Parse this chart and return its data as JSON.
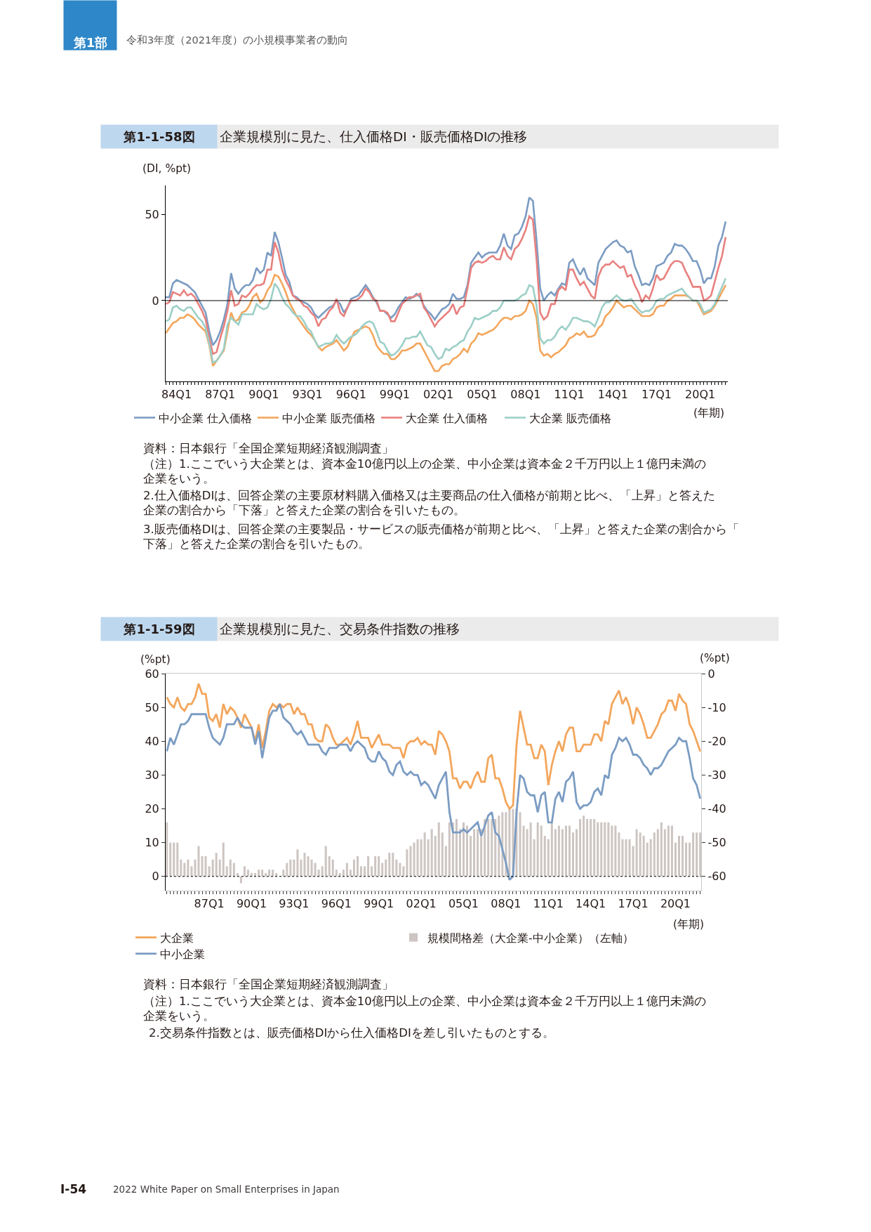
{
  "chart_data": [
    {
      "type": "line",
      "title": "企業規模別に見た、仕入価格DI・販売価格DIの推移",
      "xlabel": "(年期)",
      "ylabel": "(DI, %pt)",
      "annotations": [
        "第1部",
        "令和3年度（2021年度）の小規模事業者の動向",
        "第1-1-58図",
        "資料：日本銀行「全国企業短期経済観測調査」",
        "（注）1.ここでいう大企業とは、資本金10億円以上の企業、中小企業は資本金２千万円以上１億円未満の企業をいう。",
        "2.仕入価格DIは、回答企業の主要原材料購入価格又は主要商品の仕入価格が前期と比べ、「上昇」と答えた企業の割合から「下落」と答えた企業の割合を引いたもの。",
        "3.販売価格DIは、回答企業の主要製品・サービスの販売価格が前期と比べ、「上昇」と答えた企業の割合から「下落」と答えた企業の割合を引いたもの。"
      ],
      "categories": [
        null,
        null,
        null,
        "84Q1",
        null,
        null,
        null,
        null,
        null,
        null,
        null,
        null,
        null,
        null,
        null,
        "87Q1",
        null,
        null,
        null,
        null,
        null,
        null,
        null,
        null,
        null,
        null,
        null,
        "90Q1",
        null,
        null,
        null,
        null,
        null,
        null,
        null,
        null,
        null,
        null,
        null,
        "93Q1",
        null,
        null,
        null,
        null,
        null,
        null,
        null,
        null,
        null,
        null,
        null,
        "96Q1",
        null,
        null,
        null,
        null,
        null,
        null,
        null,
        null,
        null,
        null,
        null,
        "99Q1",
        null,
        null,
        null,
        null,
        null,
        null,
        null,
        null,
        null,
        null,
        null,
        "02Q1",
        null,
        null,
        null,
        null,
        null,
        null,
        null,
        null,
        null,
        null,
        null,
        "05Q1",
        null,
        null,
        null,
        null,
        null,
        null,
        null,
        null,
        null,
        null,
        null,
        "08Q1",
        null,
        null,
        null,
        null,
        null,
        null,
        null,
        null,
        null,
        null,
        null,
        "11Q1",
        null,
        null,
        null,
        null,
        null,
        null,
        null,
        null,
        null,
        null,
        null,
        "14Q1",
        null,
        null,
        null,
        null,
        null,
        null,
        null,
        null,
        null,
        null,
        null,
        "17Q1",
        null,
        null,
        null,
        null,
        null,
        null,
        null,
        null,
        null,
        null,
        null,
        "20Q1",
        null,
        null,
        null,
        null,
        null,
        null,
        null
      ],
      "series": [
        {
          "name": "中小企業 仕入価格",
          "color": "#7b9cc3",
          "values": [
            2,
            2,
            10,
            12,
            11,
            10,
            9,
            7,
            5,
            1,
            -3,
            -7,
            -18,
            -26,
            -23,
            -18,
            -11,
            -2,
            16,
            7,
            4,
            7,
            9,
            9,
            12,
            19,
            16,
            18,
            28,
            26,
            40,
            34,
            25,
            15,
            11,
            3,
            2,
            0,
            -1,
            -2,
            -4,
            -8,
            -10,
            -8,
            -6,
            -4,
            -3,
            0,
            -2,
            -7,
            -4,
            1,
            2,
            3,
            6,
            9,
            6,
            2,
            -1,
            -6,
            -6,
            -8,
            -10,
            -8,
            -4,
            -1,
            2,
            1,
            2,
            4,
            2,
            -3,
            -6,
            -8,
            -11,
            -8,
            -5,
            -4,
            -2,
            4,
            1,
            1,
            2,
            9,
            22,
            25,
            28,
            25,
            27,
            28,
            28,
            28,
            32,
            39,
            32,
            30,
            38,
            39,
            43,
            49,
            60,
            58,
            35,
            7,
            0,
            3,
            5,
            3,
            7,
            10,
            9,
            22,
            24,
            19,
            15,
            19,
            13,
            11,
            9,
            22,
            26,
            30,
            32,
            34,
            35,
            32,
            31,
            28,
            29,
            20,
            15,
            9,
            10,
            9,
            13,
            20,
            21,
            22,
            26,
            28,
            33,
            32,
            32,
            30,
            27,
            23,
            23,
            18,
            10,
            13,
            13,
            20,
            32,
            37,
            46
          ]
        },
        {
          "name": "中小企業 販売価格",
          "color": "#f3a65c",
          "values": [
            -19,
            -16,
            -13,
            -12,
            -10,
            -10,
            -8,
            -9,
            -11,
            -14,
            -16,
            -18,
            -26,
            -38,
            -35,
            -32,
            -29,
            -18,
            -7,
            -12,
            -11,
            -7,
            -6,
            -3,
            2,
            4,
            -1,
            1,
            6,
            9,
            15,
            14,
            10,
            5,
            -1,
            -5,
            -9,
            -12,
            -15,
            -18,
            -20,
            -23,
            -27,
            -29,
            -27,
            -26,
            -25,
            -23,
            -26,
            -29,
            -27,
            -22,
            -18,
            -17,
            -16,
            -15,
            -16,
            -20,
            -26,
            -29,
            -31,
            -31,
            -34,
            -34,
            -32,
            -29,
            -29,
            -28,
            -27,
            -25,
            -25,
            -29,
            -33,
            -37,
            -41,
            -41,
            -38,
            -37,
            -37,
            -34,
            -33,
            -31,
            -28,
            -30,
            -25,
            -23,
            -19,
            -20,
            -19,
            -18,
            -17,
            -15,
            -12,
            -10,
            -10,
            -11,
            -9,
            -9,
            -8,
            -6,
            0,
            -2,
            -10,
            -29,
            -32,
            -31,
            -33,
            -31,
            -30,
            -28,
            -26,
            -22,
            -21,
            -19,
            -20,
            -18,
            -21,
            -21,
            -20,
            -16,
            -14,
            -9,
            -7,
            -4,
            0,
            -2,
            -4,
            -3,
            -3,
            -5,
            -7,
            -9,
            -9,
            -9,
            -8,
            -4,
            -3,
            -3,
            0,
            1,
            3,
            3,
            3,
            3,
            2,
            0,
            0,
            -4,
            -8,
            -7,
            -6,
            -3,
            1,
            5,
            9
          ]
        },
        {
          "name": "大企業 仕入価格",
          "color": "#e8817f",
          "values": [
            -2,
            -1,
            5,
            4,
            3,
            6,
            3,
            4,
            2,
            -2,
            -6,
            -11,
            -22,
            -31,
            -30,
            -22,
            -15,
            -6,
            6,
            -3,
            -2,
            3,
            2,
            4,
            7,
            9,
            9,
            10,
            18,
            18,
            34,
            28,
            18,
            12,
            8,
            3,
            1,
            0,
            -3,
            -4,
            -7,
            -9,
            -15,
            -11,
            -10,
            -6,
            -4,
            1,
            -7,
            -9,
            -4,
            0,
            0,
            1,
            3,
            7,
            5,
            1,
            0,
            -6,
            -6,
            -7,
            -12,
            -12,
            -7,
            -2,
            0,
            2,
            2,
            3,
            4,
            -4,
            -7,
            -11,
            -15,
            -12,
            -10,
            -8,
            -6,
            -2,
            -8,
            -4,
            -3,
            7,
            19,
            22,
            23,
            22,
            23,
            25,
            26,
            24,
            24,
            31,
            26,
            24,
            30,
            32,
            36,
            41,
            49,
            47,
            24,
            -7,
            -11,
            -9,
            -2,
            -2,
            6,
            8,
            6,
            18,
            18,
            13,
            9,
            11,
            7,
            3,
            1,
            14,
            19,
            21,
            21,
            23,
            21,
            19,
            20,
            14,
            15,
            9,
            5,
            -1,
            3,
            1,
            7,
            15,
            12,
            13,
            17,
            21,
            23,
            23,
            22,
            17,
            13,
            8,
            8,
            8,
            0,
            1,
            3,
            11,
            19,
            26,
            37
          ]
        },
        {
          "name": "大企業 販売価格",
          "color": "#9dcfc7",
          "values": [
            -12,
            -11,
            -4,
            -3,
            -5,
            -6,
            -4,
            -4,
            -7,
            -10,
            -12,
            -16,
            -25,
            -36,
            -35,
            -32,
            -28,
            -14,
            -10,
            -12,
            -14,
            -8,
            -8,
            -8,
            -8,
            -2,
            -4,
            -5,
            -4,
            1,
            10,
            7,
            2,
            -2,
            -4,
            -7,
            -9,
            -9,
            -12,
            -16,
            -18,
            -23,
            -27,
            -26,
            -25,
            -25,
            -24,
            -20,
            -23,
            -25,
            -23,
            -21,
            -20,
            -18,
            -15,
            -13,
            -12,
            -13,
            -18,
            -24,
            -25,
            -29,
            -32,
            -31,
            -29,
            -26,
            -22,
            -22,
            -21,
            -21,
            -18,
            -22,
            -26,
            -27,
            -31,
            -34,
            -33,
            -28,
            -29,
            -27,
            -26,
            -24,
            -23,
            -18,
            -15,
            -10,
            -11,
            -10,
            -9,
            -8,
            -6,
            -6,
            -4,
            0,
            0,
            0,
            0,
            1,
            3,
            4,
            9,
            8,
            -3,
            -22,
            -25,
            -23,
            -23,
            -21,
            -17,
            -15,
            -17,
            -14,
            -10,
            -10,
            -11,
            -12,
            -12,
            -13,
            -15,
            -10,
            -4,
            -1,
            -1,
            1,
            3,
            1,
            0,
            0,
            1,
            -2,
            -5,
            -7,
            -6,
            -6,
            -4,
            0,
            1,
            1,
            3,
            4,
            5,
            6,
            7,
            4,
            2,
            0,
            0,
            -2,
            -7,
            -6,
            -5,
            -2,
            3,
            8,
            13
          ]
        }
      ],
      "ylim": [
        -47,
        67
      ],
      "yticks": [
        0,
        50
      ],
      "ref_lines": [
        {
          "axis": "y",
          "value": 0,
          "color": "#000000"
        }
      ],
      "legend": "bottom"
    },
    {
      "type": "line",
      "title": "企業規模別に見た、交易条件指数の推移",
      "xlabel": "(年期)",
      "ylabel": "(%pt)",
      "y2label": "(%pt)",
      "annotations": [
        "第1-1-59図",
        "資料：日本銀行「全国企業短期経済観測調査」",
        "（注）1.ここでいう大企業とは、資本金10億円以上の企業、中小企業は資本金２千万円以上１億円未満の企業をいう。",
        "2.交易条件指数とは、販売価格DIから仕入価格DIを差し引いたものとする。",
        "I-54",
        "2022 White Paper on Small Enterprises in Japan"
      ],
      "categories": [
        null,
        null,
        null,
        null,
        null,
        null,
        null,
        null,
        null,
        null,
        null,
        null,
        "87Q1",
        null,
        null,
        null,
        null,
        null,
        null,
        null,
        null,
        null,
        null,
        null,
        "90Q1",
        null,
        null,
        null,
        null,
        null,
        null,
        null,
        null,
        null,
        null,
        null,
        "93Q1",
        null,
        null,
        null,
        null,
        null,
        null,
        null,
        null,
        null,
        null,
        null,
        "96Q1",
        null,
        null,
        null,
        null,
        null,
        null,
        null,
        null,
        null,
        null,
        null,
        "99Q1",
        null,
        null,
        null,
        null,
        null,
        null,
        null,
        null,
        null,
        null,
        null,
        "02Q1",
        null,
        null,
        null,
        null,
        null,
        null,
        null,
        null,
        null,
        null,
        null,
        "05Q1",
        null,
        null,
        null,
        null,
        null,
        null,
        null,
        null,
        null,
        null,
        null,
        "08Q1",
        null,
        null,
        null,
        null,
        null,
        null,
        null,
        null,
        null,
        null,
        null,
        "11Q1",
        null,
        null,
        null,
        null,
        null,
        null,
        null,
        null,
        null,
        null,
        null,
        "14Q1",
        null,
        null,
        null,
        null,
        null,
        null,
        null,
        null,
        null,
        null,
        null,
        "17Q1",
        null,
        null,
        null,
        null,
        null,
        null,
        null,
        null,
        null,
        null,
        null,
        "20Q1",
        null,
        null,
        null,
        null,
        null,
        null,
        null
      ],
      "series": [
        {
          "name": "規模間格差（大企業-中小企業）（左軸）",
          "type": "bar",
          "axis": "y",
          "color": "#cdc5c2",
          "values": [
            16,
            10,
            10,
            10,
            5,
            4,
            5,
            3,
            5,
            9,
            6,
            6,
            3,
            5,
            7,
            5,
            10,
            3,
            5,
            4,
            1,
            -2,
            3,
            2,
            1,
            1,
            2,
            2,
            1,
            2,
            2,
            1,
            0,
            2,
            4,
            5,
            5,
            8,
            5,
            7,
            6,
            5,
            4,
            2,
            3,
            9,
            6,
            5,
            2,
            1,
            2,
            4,
            2,
            5,
            6,
            3,
            3,
            6,
            3,
            6,
            6,
            4,
            5,
            7,
            7,
            5,
            4,
            3,
            8,
            9,
            10,
            11,
            11,
            13,
            11,
            14,
            12,
            16,
            13,
            9,
            16,
            16,
            17,
            14,
            16,
            15,
            12,
            14,
            14,
            14,
            17,
            17,
            17,
            17,
            18,
            19,
            19,
            20,
            20,
            20,
            19,
            15,
            14,
            16,
            11,
            16,
            15,
            12,
            11,
            16,
            14,
            15,
            14,
            15,
            15,
            13,
            14,
            17,
            18,
            17,
            17,
            17,
            16,
            16,
            16,
            16,
            15,
            15,
            13,
            11,
            11,
            11,
            9,
            14,
            13,
            12,
            10,
            11,
            13,
            14,
            16,
            14,
            15,
            15,
            10,
            12,
            12,
            10,
            10,
            13,
            13,
            13
          ]
        },
        {
          "name": "大企業",
          "type": "line",
          "axis": "y2",
          "color": "#f3a65c",
          "values": [
            -7,
            -9,
            -10,
            -7,
            -10,
            -11,
            -9,
            -9,
            -7,
            -3,
            -6,
            -6,
            -13,
            -14,
            -12,
            -16,
            -9,
            -12,
            -10,
            -11,
            -13,
            -16,
            -12,
            -14,
            -16,
            -20,
            -15,
            -22,
            -17,
            -11,
            -9,
            -10,
            -9,
            -10,
            -9,
            -9,
            -12,
            -10,
            -12,
            -12,
            -15,
            -15,
            -19,
            -20,
            -20,
            -15,
            -16,
            -19,
            -21,
            -21,
            -20,
            -19,
            -21,
            -18,
            -14,
            -19,
            -19,
            -19,
            -22,
            -20,
            -18,
            -21,
            -21,
            -21,
            -22,
            -22,
            -22,
            -25,
            -21,
            -20,
            -20,
            -19,
            -21,
            -20,
            -21,
            -21,
            -24,
            -17,
            -18,
            -20,
            -23,
            -31,
            -31,
            -34,
            -32,
            -32,
            -34,
            -31,
            -29,
            -32,
            -32,
            -25,
            -24,
            -31,
            -31,
            -34,
            -38,
            -40,
            -39,
            -21,
            -11,
            -16,
            -21,
            -21,
            -25,
            -25,
            -21,
            -23,
            -33,
            -27,
            -23,
            -20,
            -23,
            -18,
            -16,
            -16,
            -23,
            -23,
            -21,
            -21,
            -21,
            -18,
            -18,
            -20,
            -14,
            -15,
            -9,
            -7,
            -5,
            -9,
            -7,
            -10,
            -15,
            -10,
            -12,
            -15,
            -19,
            -19,
            -17,
            -15,
            -12,
            -11,
            -8,
            -8,
            -11,
            -6,
            -8,
            -9,
            -15,
            -17,
            -20,
            -23
          ]
        },
        {
          "name": "中小企業",
          "type": "line",
          "axis": "y2",
          "color": "#7b9cc3",
          "values": [
            -23,
            -19,
            -21,
            -18,
            -15,
            -15,
            -14,
            -12,
            -12,
            -12,
            -12,
            -12,
            -16,
            -19,
            -20,
            -21,
            -19,
            -15,
            -15,
            -15,
            -13,
            -15,
            -16,
            -16,
            -16,
            -21,
            -17,
            -25,
            -19,
            -13,
            -11,
            -11,
            -9,
            -13,
            -14,
            -15,
            -17,
            -18,
            -17,
            -19,
            -21,
            -21,
            -21,
            -21,
            -23,
            -24,
            -22,
            -22,
            -22,
            -21,
            -21,
            -21,
            -23,
            -21,
            -20,
            -21,
            -22,
            -25,
            -26,
            -26,
            -23,
            -25,
            -26,
            -29,
            -30,
            -27,
            -26,
            -29,
            -30,
            -29,
            -30,
            -30,
            -33,
            -32,
            -33,
            -35,
            -37,
            -33,
            -31,
            -29,
            -41,
            -47,
            -47,
            -47,
            -46,
            -47,
            -46,
            -45,
            -44,
            -48,
            -45,
            -42,
            -41,
            -47,
            -48,
            -52,
            -56,
            -61,
            -60,
            -41,
            -30,
            -31,
            -35,
            -36,
            -36,
            -41,
            -36,
            -35,
            -44,
            -44,
            -37,
            -35,
            -38,
            -32,
            -31,
            -29,
            -38,
            -40,
            -39,
            -39,
            -38,
            -35,
            -34,
            -36,
            -30,
            -31,
            -24,
            -22,
            -19,
            -20,
            -19,
            -21,
            -24,
            -24,
            -25,
            -27,
            -28,
            -30,
            -28,
            -28,
            -27,
            -25,
            -23,
            -22,
            -21,
            -19,
            -20,
            -20,
            -25,
            -31,
            -33,
            -37
          ]
        }
      ],
      "ylim": [
        -4.2,
        60
      ],
      "yticks": [
        0,
        10,
        20,
        30,
        40,
        50,
        60
      ],
      "y2lim": [
        -64.2,
        0
      ],
      "y2ticks": [
        -60,
        -50,
        -40,
        -30,
        -20,
        -10,
        0
      ],
      "ref_lines": [
        {
          "axis": "y",
          "value": 0,
          "color": "#000000",
          "line_style": "dotted"
        }
      ],
      "legend": "bottom"
    }
  ]
}
